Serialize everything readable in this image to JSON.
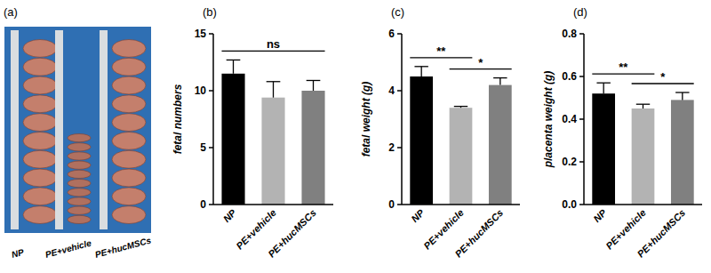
{
  "photo": {
    "label": "(a)",
    "groups": [
      "NP",
      "PE+vehicle",
      "PE+hucMSCs"
    ]
  },
  "chart_data": [
    {
      "type": "bar",
      "title": "(b)",
      "y_label": "fetal numbers",
      "categories": [
        "NP",
        "PE+vehicle",
        "PE+hucMSCs"
      ],
      "values": [
        11.5,
        9.4,
        10.0
      ],
      "errors": [
        1.2,
        1.4,
        0.9
      ],
      "colors": [
        "#000000",
        "#b3b3b3",
        "#808080"
      ],
      "ylim": [
        0,
        15
      ],
      "yticks": [
        0,
        5,
        10,
        15
      ],
      "annotations": [
        {
          "text": "ns",
          "between": [
            "NP",
            "PE+hucMSCs"
          ]
        }
      ]
    },
    {
      "type": "bar",
      "title": "(c)",
      "y_label": "fetal weight (g)",
      "categories": [
        "NP",
        "PE+vehicle",
        "PE+hucMSCs"
      ],
      "values": [
        4.5,
        3.4,
        4.2
      ],
      "errors": [
        0.35,
        0.05,
        0.25
      ],
      "colors": [
        "#000000",
        "#b3b3b3",
        "#808080"
      ],
      "ylim": [
        0,
        6
      ],
      "yticks": [
        0,
        2,
        4,
        6
      ],
      "annotations": [
        {
          "text": "**",
          "between": [
            "NP",
            "PE+vehicle"
          ]
        },
        {
          "text": "*",
          "between": [
            "PE+vehicle",
            "PE+hucMSCs"
          ]
        }
      ]
    },
    {
      "type": "bar",
      "title": "(d)",
      "y_label": "placenta weight (g)",
      "categories": [
        "NP",
        "PE+vehicle",
        "PE+hucMSCs"
      ],
      "values": [
        0.52,
        0.45,
        0.49
      ],
      "errors": [
        0.05,
        0.02,
        0.035
      ],
      "colors": [
        "#000000",
        "#b3b3b3",
        "#808080"
      ],
      "ylim": [
        0,
        0.8
      ],
      "yticks": [
        {
          "value": 0,
          "label": "0.0"
        },
        0.2,
        0.4,
        0.6,
        0.8
      ],
      "annotations": [
        {
          "text": "**",
          "between": [
            "NP",
            "PE+vehicle"
          ]
        },
        {
          "text": "*",
          "between": [
            "PE+vehicle",
            "PE+hucMSCs"
          ]
        }
      ]
    }
  ]
}
